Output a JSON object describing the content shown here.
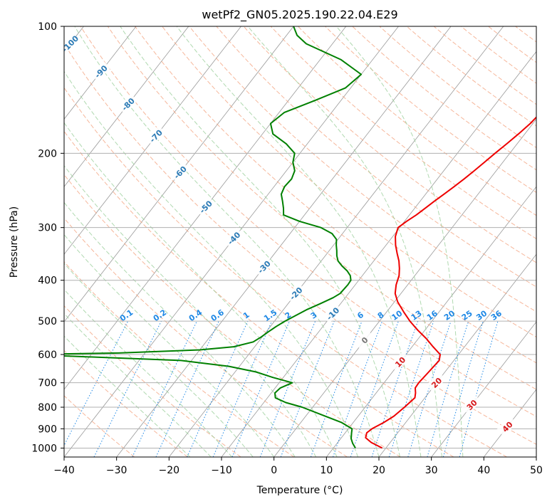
{
  "chart_data": {
    "type": "line",
    "title": "wetPf2_GN05.2025.190.22.04.E29",
    "xlabel": "Temperature (°C)",
    "ylabel": "Pressure (hPa)",
    "xlim": [
      -40,
      50
    ],
    "ylim": [
      1050,
      100
    ],
    "y_scale": "log",
    "x_ticks": [
      -40,
      -30,
      -20,
      -10,
      0,
      10,
      20,
      30,
      40,
      50
    ],
    "x_tick_labels": [
      "−40",
      "−30",
      "−20",
      "−10",
      "0",
      "10",
      "20",
      "30",
      "40",
      "50"
    ],
    "y_ticks": [
      100,
      200,
      300,
      400,
      500,
      600,
      700,
      800,
      900,
      1000
    ],
    "y_tick_labels": [
      "100",
      "200",
      "300",
      "400",
      "500",
      "600",
      "700",
      "800",
      "900",
      "1000"
    ],
    "grid": true,
    "colors": {
      "temperature": "#ee0000",
      "dewpoint": "#008000",
      "isotherm": "#999999",
      "dry_adiabat": "#f4a582",
      "moist_adiabat": "#9ccf9c",
      "mixing_ratio": "#1e88e5",
      "label_blue": "#2c7bb6",
      "label_red": "#d7191c"
    },
    "series": [
      {
        "key": "temperature",
        "pressure": [
          1000,
          970,
          945,
          920,
          900,
          870,
          840,
          800,
          760,
          740,
          720,
          700,
          660,
          620,
          600,
          575,
          550,
          525,
          500,
          475,
          450,
          430,
          410,
          400,
          390,
          375,
          360,
          345,
          330,
          315,
          300,
          290,
          280,
          270,
          260,
          250,
          240,
          230,
          220,
          210,
          200,
          190,
          180,
          170,
          160,
          150,
          145,
          140,
          135,
          130,
          125,
          120,
          115,
          110,
          105,
          100
        ],
        "values": [
          19.3,
          16.4,
          14.6,
          14.1,
          14.5,
          15.8,
          16.8,
          17.5,
          18.1,
          17.5,
          16.7,
          16.6,
          16.9,
          17.2,
          16.5,
          14.0,
          11.5,
          8.6,
          5.8,
          3.2,
          0.6,
          -1.1,
          -2.2,
          -2.6,
          -3.0,
          -4.0,
          -5.2,
          -6.7,
          -8.2,
          -9.5,
          -10.3,
          -9.6,
          -8.7,
          -8.0,
          -7.3,
          -6.5,
          -5.7,
          -4.9,
          -4.2,
          -3.5,
          -2.8,
          -2.0,
          -1.2,
          -0.5,
          -0.1,
          0.1,
          0.4,
          0.8,
          1.4,
          2.0,
          2.7,
          3.4,
          4.2,
          5.2,
          6.2,
          7.2
        ]
      },
      {
        "key": "dewpoint",
        "pressure": [
          1000,
          975,
          950,
          920,
          900,
          870,
          840,
          800,
          780,
          760,
          740,
          720,
          700,
          680,
          660,
          640,
          620,
          600,
          595,
          585,
          575,
          560,
          545,
          530,
          515,
          500,
          485,
          470,
          455,
          440,
          430,
          420,
          410,
          400,
          390,
          380,
          370,
          360,
          350,
          340,
          330,
          320,
          310,
          300,
          290,
          280,
          270,
          260,
          250,
          240,
          230,
          220,
          210,
          200,
          190,
          180,
          170,
          160,
          150,
          140,
          130,
          120,
          110,
          105,
          100
        ],
        "values": [
          14.2,
          13.0,
          12.0,
          11.2,
          10.7,
          7.8,
          3.7,
          -2.0,
          -5.8,
          -8.5,
          -9.3,
          -9.0,
          -7.5,
          -12.0,
          -16.0,
          -22.0,
          -32.0,
          -62.0,
          -45.0,
          -30.0,
          -24.0,
          -21.0,
          -20.2,
          -19.6,
          -18.9,
          -18.0,
          -16.8,
          -15.6,
          -13.9,
          -12.3,
          -11.6,
          -11.5,
          -11.4,
          -11.5,
          -12.3,
          -13.6,
          -15.3,
          -16.8,
          -17.8,
          -18.6,
          -19.5,
          -20.3,
          -22.0,
          -25.0,
          -30.0,
          -34.0,
          -35.0,
          -36.2,
          -37.5,
          -38.0,
          -37.8,
          -38.4,
          -40.0,
          -41.0,
          -44.0,
          -48.0,
          -50.0,
          -49.0,
          -45.0,
          -41.0,
          -40.0,
          -46.0,
          -55.0,
          -58.0,
          -60.0
        ]
      }
    ],
    "isotherm_labels": [
      "-100",
      "-90",
      "-80",
      "-70",
      "-60",
      "-50",
      "-40",
      "-30",
      "-20",
      "-10",
      "0",
      "10",
      "20",
      "30",
      "40"
    ],
    "mixing_ratio_labels": [
      "0.1",
      "0.2",
      "0.4",
      "0.6",
      "1",
      "1.5",
      "2",
      "3",
      "4",
      "6",
      "8",
      "10",
      "13",
      "16",
      "20",
      "25",
      "30",
      "36"
    ],
    "mixing_ratio_values": [
      0.1,
      0.2,
      0.4,
      0.6,
      1,
      1.5,
      2,
      3,
      4,
      6,
      8,
      10,
      13,
      16,
      20,
      25,
      30,
      36
    ]
  }
}
